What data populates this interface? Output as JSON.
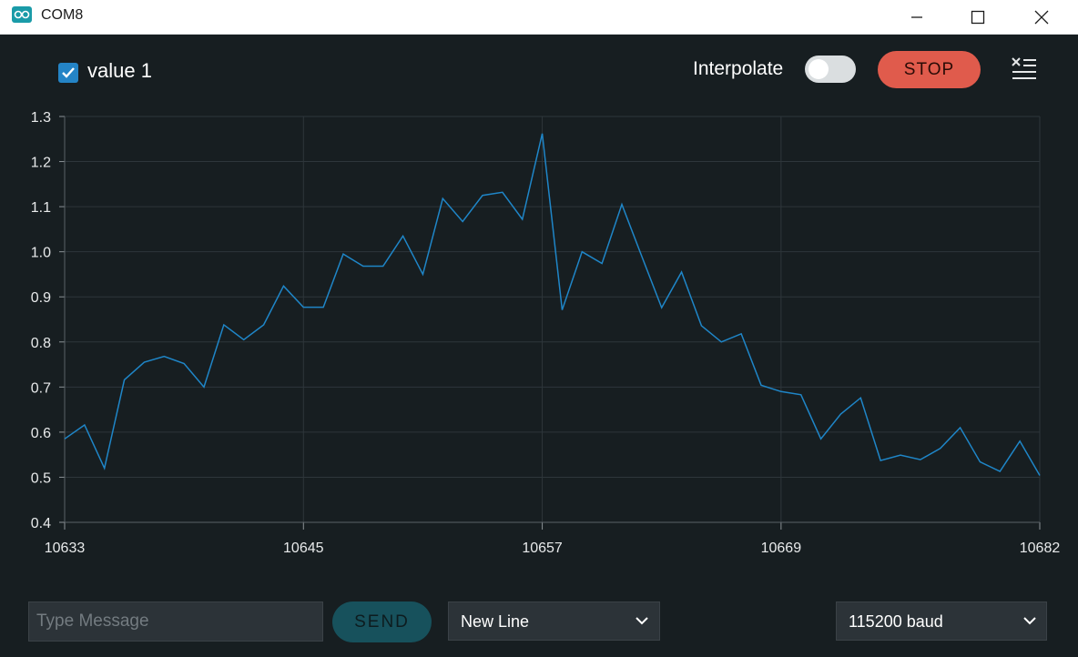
{
  "window": {
    "title": "COM8"
  },
  "legend": {
    "series_label": "value 1",
    "checked": true
  },
  "controls": {
    "interpolate_label": "Interpolate",
    "interpolate_on": false,
    "stop_label": "STOP"
  },
  "footer": {
    "message_placeholder": "Type Message",
    "send_label": "SEND",
    "line_ending": "New Line",
    "baud_rate": "115200 baud"
  },
  "colors": {
    "line": "#1f86c8",
    "background": "#171e21",
    "stop": "#e05b4c",
    "send": "#17515c",
    "grid": "#2e363b"
  },
  "chart_data": {
    "type": "line",
    "xlim": [
      10633,
      10682
    ],
    "ylim": [
      0.4,
      1.3
    ],
    "xticks": [
      "10633",
      "10645",
      "10657",
      "10669",
      "10682"
    ],
    "yticks": [
      "0.4",
      "0.5",
      "0.6",
      "0.7",
      "0.8",
      "0.9",
      "1.0",
      "1.1",
      "1.2",
      "1.3"
    ],
    "grid": true,
    "series": [
      {
        "name": "value 1",
        "x": [
          10633,
          10634,
          10635,
          10636,
          10637,
          10638,
          10639,
          10640,
          10641,
          10642,
          10643,
          10644,
          10645,
          10646,
          10647,
          10648,
          10649,
          10650,
          10651,
          10652,
          10653,
          10654,
          10655,
          10656,
          10657,
          10658,
          10659,
          10660,
          10661,
          10662,
          10663,
          10664,
          10665,
          10666,
          10667,
          10668,
          10669,
          10670,
          10671,
          10672,
          10673,
          10674,
          10675,
          10676,
          10677,
          10678,
          10679,
          10680,
          10681,
          10682
        ],
        "values": [
          0.585,
          0.616,
          0.52,
          0.716,
          0.755,
          0.768,
          0.752,
          0.7,
          0.838,
          0.805,
          0.838,
          0.924,
          0.877,
          0.877,
          0.995,
          0.968,
          0.968,
          1.035,
          0.95,
          1.118,
          1.067,
          1.125,
          1.132,
          1.072,
          1.262,
          0.871,
          1.0,
          0.974,
          1.105,
          0.99,
          0.876,
          0.955,
          0.836,
          0.8,
          0.818,
          0.704,
          0.69,
          0.683,
          0.585,
          0.64,
          0.676,
          0.537,
          0.549,
          0.539,
          0.564,
          0.61,
          0.534,
          0.513,
          0.58,
          0.504
        ]
      }
    ]
  }
}
